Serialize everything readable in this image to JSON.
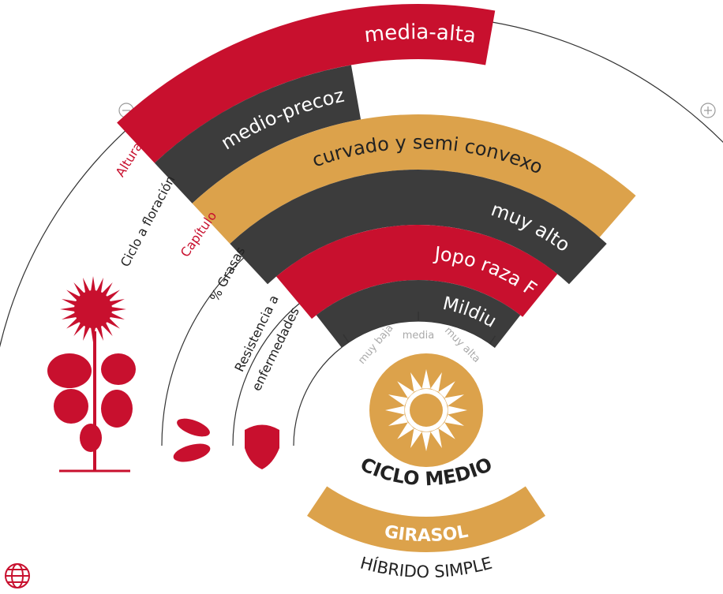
{
  "traits": [
    {
      "label": "Altura",
      "value": "media-alta"
    },
    {
      "label": "Ciclo a floración",
      "value": "medio-precoz"
    },
    {
      "label": "Capítulo",
      "value": "curvado y semi convexo"
    },
    {
      "label": "% Grasas",
      "value": "muy alto"
    }
  ],
  "resistance": {
    "label": [
      "Resistencia a",
      "enfermedades"
    ],
    "values": [
      "Jopo raza F",
      "Mildiu"
    ],
    "scale": [
      "muy baja",
      "media",
      "muy alta"
    ]
  },
  "cycle": "CICLO MEDIO",
  "crop": "GIRASOL",
  "hybrid": "HÍBRIDO SIMPLE"
}
